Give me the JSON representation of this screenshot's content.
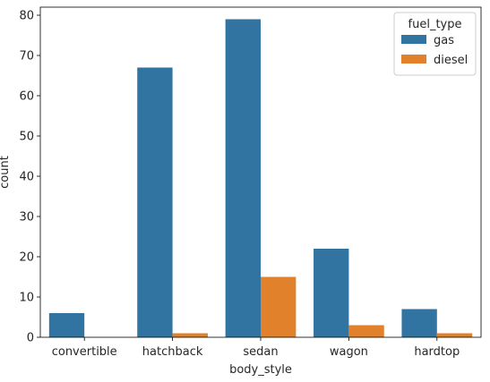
{
  "chart_data": {
    "type": "bar",
    "categories": [
      "convertible",
      "hatchback",
      "sedan",
      "wagon",
      "hardtop"
    ],
    "series": [
      {
        "name": "gas",
        "values": [
          6,
          67,
          79,
          22,
          7
        ],
        "color": "#3274a1"
      },
      {
        "name": "diesel",
        "values": [
          0,
          1,
          15,
          3,
          1
        ],
        "color": "#e1812c"
      }
    ],
    "xlabel": "body_style",
    "ylabel": "count",
    "ylim": [
      0,
      82
    ],
    "yticks": [
      0,
      10,
      20,
      30,
      40,
      50,
      60,
      70,
      80
    ],
    "legend": {
      "title": "fuel_type",
      "placement": "top-right"
    },
    "grid": false
  }
}
